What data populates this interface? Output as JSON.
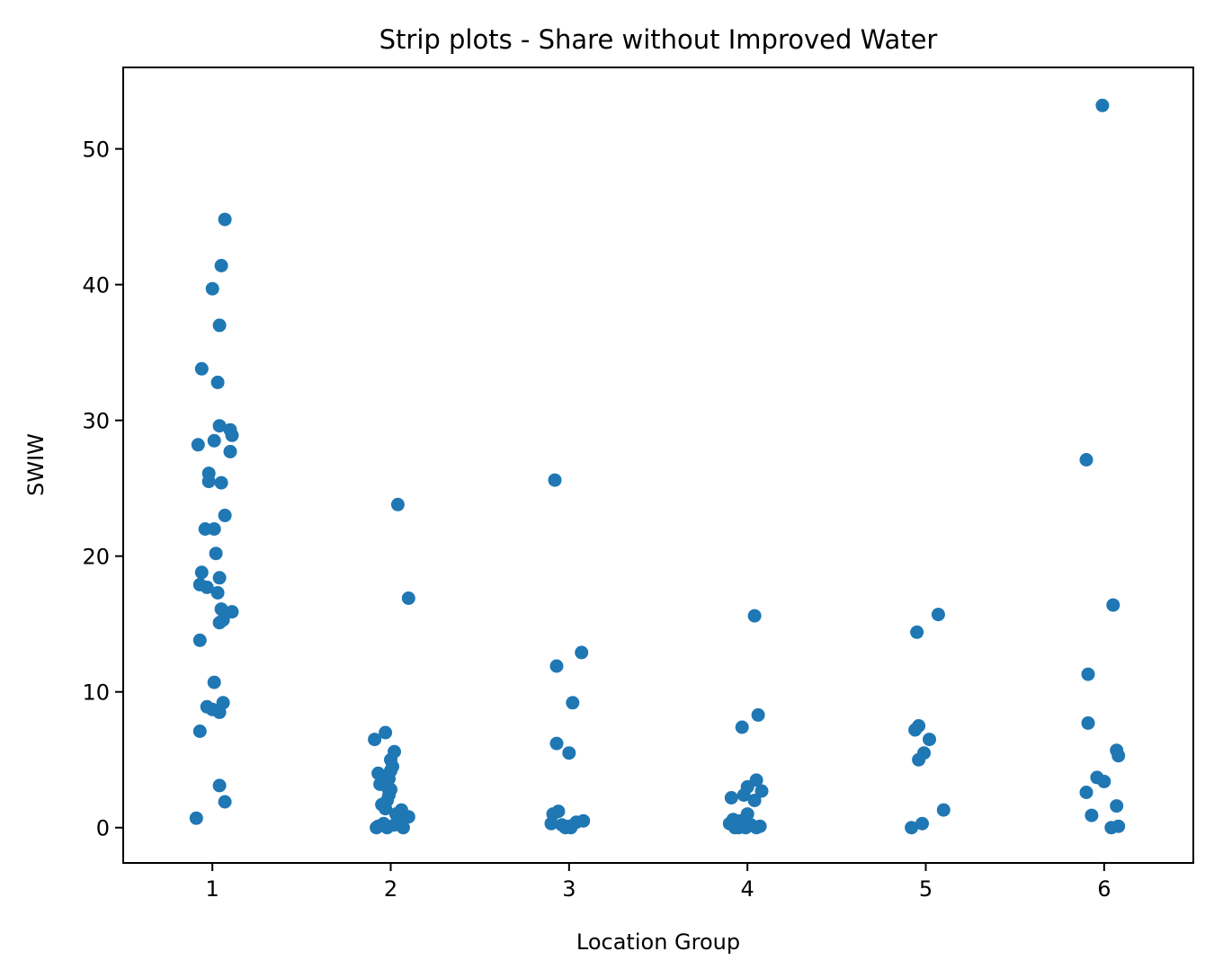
{
  "chart_data": {
    "type": "scatter",
    "subtype": "strip",
    "title": "Strip plots - Share without Improved Water",
    "xlabel": "Location Group",
    "ylabel": "SWIW",
    "categories": [
      "1",
      "2",
      "3",
      "4",
      "5",
      "6"
    ],
    "xlim": [
      0.5,
      6.5
    ],
    "ylim": [
      -2.6,
      56
    ],
    "yticks": [
      0,
      10,
      20,
      30,
      40,
      50
    ],
    "grid": false,
    "legend": "none",
    "marker_color": "#1f77b4",
    "points": [
      {
        "x": 1.07,
        "y": 44.8
      },
      {
        "x": 1.05,
        "y": 41.4
      },
      {
        "x": 1.0,
        "y": 39.7
      },
      {
        "x": 1.04,
        "y": 37.0
      },
      {
        "x": 0.94,
        "y": 33.8
      },
      {
        "x": 1.03,
        "y": 32.8
      },
      {
        "x": 1.04,
        "y": 29.6
      },
      {
        "x": 1.1,
        "y": 29.3
      },
      {
        "x": 1.11,
        "y": 28.9
      },
      {
        "x": 1.01,
        "y": 28.5
      },
      {
        "x": 0.92,
        "y": 28.2
      },
      {
        "x": 1.1,
        "y": 27.7
      },
      {
        "x": 0.98,
        "y": 26.1
      },
      {
        "x": 0.98,
        "y": 25.5
      },
      {
        "x": 1.05,
        "y": 25.4
      },
      {
        "x": 1.07,
        "y": 23.0
      },
      {
        "x": 0.96,
        "y": 22.0
      },
      {
        "x": 1.01,
        "y": 22.0
      },
      {
        "x": 1.02,
        "y": 20.2
      },
      {
        "x": 0.94,
        "y": 18.8
      },
      {
        "x": 1.04,
        "y": 18.4
      },
      {
        "x": 0.93,
        "y": 17.9
      },
      {
        "x": 0.97,
        "y": 17.7
      },
      {
        "x": 1.03,
        "y": 17.3
      },
      {
        "x": 1.05,
        "y": 16.1
      },
      {
        "x": 1.11,
        "y": 15.9
      },
      {
        "x": 1.04,
        "y": 15.1
      },
      {
        "x": 1.06,
        "y": 15.3
      },
      {
        "x": 0.93,
        "y": 13.8
      },
      {
        "x": 1.01,
        "y": 10.7
      },
      {
        "x": 1.06,
        "y": 9.2
      },
      {
        "x": 0.97,
        "y": 8.9
      },
      {
        "x": 1.0,
        "y": 8.7
      },
      {
        "x": 1.04,
        "y": 8.5
      },
      {
        "x": 0.93,
        "y": 7.1
      },
      {
        "x": 1.04,
        "y": 3.1
      },
      {
        "x": 1.07,
        "y": 1.9
      },
      {
        "x": 0.91,
        "y": 0.7
      },
      {
        "x": 2.04,
        "y": 23.8
      },
      {
        "x": 2.1,
        "y": 16.9
      },
      {
        "x": 1.97,
        "y": 7.0
      },
      {
        "x": 1.91,
        "y": 6.5
      },
      {
        "x": 2.02,
        "y": 5.6
      },
      {
        "x": 2.0,
        "y": 5.0
      },
      {
        "x": 2.01,
        "y": 4.5
      },
      {
        "x": 2.0,
        "y": 4.2
      },
      {
        "x": 1.93,
        "y": 4.0
      },
      {
        "x": 1.99,
        "y": 3.6
      },
      {
        "x": 1.94,
        "y": 3.2
      },
      {
        "x": 1.98,
        "y": 3.0
      },
      {
        "x": 2.0,
        "y": 2.8
      },
      {
        "x": 1.99,
        "y": 2.4
      },
      {
        "x": 1.98,
        "y": 2.0
      },
      {
        "x": 1.95,
        "y": 1.7
      },
      {
        "x": 1.97,
        "y": 1.4
      },
      {
        "x": 2.06,
        "y": 1.3
      },
      {
        "x": 2.03,
        "y": 1.0
      },
      {
        "x": 2.1,
        "y": 0.8
      },
      {
        "x": 2.05,
        "y": 0.6
      },
      {
        "x": 1.96,
        "y": 0.3
      },
      {
        "x": 1.93,
        "y": 0.1
      },
      {
        "x": 1.98,
        "y": 0.0
      },
      {
        "x": 2.07,
        "y": 0.0
      },
      {
        "x": 1.92,
        "y": 0.0
      },
      {
        "x": 2.02,
        "y": 0.2
      },
      {
        "x": 2.92,
        "y": 25.6
      },
      {
        "x": 3.07,
        "y": 12.9
      },
      {
        "x": 2.93,
        "y": 11.9
      },
      {
        "x": 3.02,
        "y": 9.2
      },
      {
        "x": 2.93,
        "y": 6.2
      },
      {
        "x": 3.0,
        "y": 5.5
      },
      {
        "x": 2.94,
        "y": 1.2
      },
      {
        "x": 2.91,
        "y": 1.0
      },
      {
        "x": 3.08,
        "y": 0.5
      },
      {
        "x": 3.04,
        "y": 0.4
      },
      {
        "x": 2.9,
        "y": 0.3
      },
      {
        "x": 2.96,
        "y": 0.2
      },
      {
        "x": 3.0,
        "y": 0.1
      },
      {
        "x": 3.01,
        "y": 0.0
      },
      {
        "x": 2.98,
        "y": 0.0
      },
      {
        "x": 4.04,
        "y": 15.6
      },
      {
        "x": 4.06,
        "y": 8.3
      },
      {
        "x": 3.97,
        "y": 7.4
      },
      {
        "x": 4.05,
        "y": 3.5
      },
      {
        "x": 4.0,
        "y": 3.0
      },
      {
        "x": 4.08,
        "y": 2.7
      },
      {
        "x": 3.98,
        "y": 2.4
      },
      {
        "x": 3.91,
        "y": 2.2
      },
      {
        "x": 4.04,
        "y": 2.0
      },
      {
        "x": 4.0,
        "y": 1.0
      },
      {
        "x": 3.92,
        "y": 0.6
      },
      {
        "x": 3.96,
        "y": 0.5
      },
      {
        "x": 3.9,
        "y": 0.3
      },
      {
        "x": 4.02,
        "y": 0.2
      },
      {
        "x": 4.07,
        "y": 0.1
      },
      {
        "x": 3.93,
        "y": 0.0
      },
      {
        "x": 3.99,
        "y": 0.0
      },
      {
        "x": 4.05,
        "y": 0.0
      },
      {
        "x": 3.95,
        "y": 0.0
      },
      {
        "x": 5.07,
        "y": 15.7
      },
      {
        "x": 4.95,
        "y": 14.4
      },
      {
        "x": 4.96,
        "y": 7.5
      },
      {
        "x": 4.94,
        "y": 7.2
      },
      {
        "x": 5.02,
        "y": 6.5
      },
      {
        "x": 4.99,
        "y": 5.5
      },
      {
        "x": 4.96,
        "y": 5.0
      },
      {
        "x": 5.1,
        "y": 1.3
      },
      {
        "x": 4.98,
        "y": 0.3
      },
      {
        "x": 4.92,
        "y": 0.0
      },
      {
        "x": 5.99,
        "y": 53.2
      },
      {
        "x": 5.9,
        "y": 27.1
      },
      {
        "x": 6.05,
        "y": 16.4
      },
      {
        "x": 5.91,
        "y": 11.3
      },
      {
        "x": 5.91,
        "y": 7.7
      },
      {
        "x": 6.07,
        "y": 5.7
      },
      {
        "x": 6.08,
        "y": 5.3
      },
      {
        "x": 5.96,
        "y": 3.7
      },
      {
        "x": 6.0,
        "y": 3.4
      },
      {
        "x": 5.9,
        "y": 2.6
      },
      {
        "x": 6.07,
        "y": 1.6
      },
      {
        "x": 5.93,
        "y": 0.9
      },
      {
        "x": 6.08,
        "y": 0.1
      },
      {
        "x": 6.04,
        "y": 0.0
      }
    ]
  }
}
